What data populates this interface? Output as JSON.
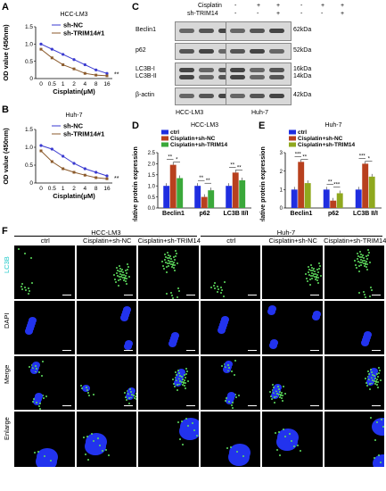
{
  "panels": {
    "A": {
      "letter": "A",
      "title": "HCC-LM3",
      "ylabel": "OD value (450nm)",
      "xlabel": "Cisplatin(μM)",
      "legend": [
        "sh-NC",
        "sh-TRIM14#1"
      ]
    },
    "B": {
      "letter": "B",
      "title": "Huh-7",
      "ylabel": "OD value (450nm)",
      "xlabel": "Cisplatin(μM)",
      "legend": [
        "sh-NC",
        "sh-TRIM14#1"
      ]
    },
    "C": {
      "letter": "C",
      "row_cisplatin": "Cisplatin",
      "row_shTRIM14": "sh-TRIM14",
      "cisplatin_signs": [
        "-",
        "+",
        "+",
        "-",
        "+",
        "+"
      ],
      "shTRIM14_signs": [
        "-",
        "-",
        "+",
        "-",
        "-",
        "+"
      ],
      "proteins": [
        "Beclin1",
        "p62",
        "LC3B-I",
        "LC3B-II",
        "β-actin"
      ],
      "sizes": [
        "62kDa",
        "52kDa",
        "16kDa",
        "14kDa",
        "42kDa"
      ],
      "cells": [
        "HCC-LM3",
        "Huh-7"
      ]
    },
    "D": {
      "letter": "D",
      "title": "HCC-LM3",
      "ylabel": "Relative protein expression",
      "legend": [
        "ctrl",
        "Cisplatin+sh-NC",
        "Cisplatin+sh-TRIM14"
      ]
    },
    "E": {
      "letter": "E",
      "title": "Huh-7",
      "ylabel": "Relative protein expression",
      "legend": [
        "ctrl",
        "Cisplatin+sh-NC",
        "Cisplatin+sh-TRIM14"
      ]
    },
    "F": {
      "letter": "F",
      "cell_groups": [
        "HCC-LM3",
        "Huh-7"
      ],
      "columns": [
        "ctrl",
        "Cisplatin+sh-NC",
        "Cisplatin+sh-TRIM14",
        "ctrl",
        "Cisplatin+sh-NC",
        "Cisplatin+sh-TRIM14"
      ],
      "rows": [
        "LC3B",
        "DAPI",
        "Merge",
        "Enlarge"
      ]
    }
  },
  "chart_data": [
    {
      "type": "line",
      "title": "HCC-LM3",
      "xlabel": "Cisplatin(μM)",
      "ylabel": "OD value (450nm)",
      "categories": [
        "0",
        "0.5",
        "1",
        "2",
        "4",
        "8",
        "16"
      ],
      "ylim": [
        0,
        1.5
      ],
      "yticks": [
        "0",
        "0.5",
        "1.0",
        "1.5"
      ],
      "series": [
        {
          "name": "sh-NC",
          "color": "#3a3ad0",
          "values": [
            1.0,
            0.85,
            0.7,
            0.55,
            0.4,
            0.25,
            0.15
          ]
        },
        {
          "name": "sh-TRIM14#1",
          "color": "#8b5a2b",
          "values": [
            0.85,
            0.6,
            0.4,
            0.28,
            0.15,
            0.1,
            0.08
          ]
        }
      ],
      "annotation": "**"
    },
    {
      "type": "line",
      "title": "Huh-7",
      "xlabel": "Cisplatin(μM)",
      "ylabel": "OD value (450nm)",
      "categories": [
        "0",
        "0.5",
        "1",
        "2",
        "4",
        "8",
        "16"
      ],
      "ylim": [
        0,
        1.5
      ],
      "yticks": [
        "0",
        "0.5",
        "1.0",
        "1.5"
      ],
      "series": [
        {
          "name": "sh-NC",
          "color": "#3a3ad0",
          "values": [
            1.05,
            0.95,
            0.75,
            0.55,
            0.4,
            0.3,
            0.2
          ]
        },
        {
          "name": "sh-TRIM14#1",
          "color": "#8b5a2b",
          "values": [
            0.9,
            0.6,
            0.4,
            0.3,
            0.22,
            0.15,
            0.12
          ]
        }
      ],
      "annotation": "**"
    },
    {
      "type": "bar",
      "title": "HCC-LM3",
      "ylabel": "Relative protein expression",
      "categories": [
        "Beclin1",
        "p62",
        "LC3B II/I"
      ],
      "ylim": [
        0,
        2.5
      ],
      "yticks": [
        "0.0",
        "0.5",
        "1.0",
        "1.5",
        "2.0",
        "2.5"
      ],
      "series": [
        {
          "name": "ctrl",
          "color": "#1f2ee0",
          "values": [
            1.0,
            1.0,
            1.0
          ]
        },
        {
          "name": "Cisplatin+sh-NC",
          "color": "#b8401e",
          "values": [
            1.95,
            0.5,
            1.6
          ]
        },
        {
          "name": "Cisplatin+sh-TRIM14",
          "color": "#3aa83a",
          "values": [
            1.35,
            0.8,
            1.25
          ]
        }
      ],
      "significance": [
        [
          "**",
          "*"
        ],
        [
          "**",
          "**"
        ],
        [
          "**",
          "**"
        ]
      ]
    },
    {
      "type": "bar",
      "title": "Huh-7",
      "ylabel": "Relative protein expression",
      "categories": [
        "Beclin1",
        "p62",
        "LC3B II/I"
      ],
      "ylim": [
        0,
        3
      ],
      "yticks": [
        "0",
        "1",
        "2",
        "3"
      ],
      "series": [
        {
          "name": "ctrl",
          "color": "#1f2ee0",
          "values": [
            1.0,
            1.0,
            1.0
          ]
        },
        {
          "name": "Cisplatin+sh-NC",
          "color": "#b8401e",
          "values": [
            2.5,
            0.4,
            2.4
          ]
        },
        {
          "name": "Cisplatin+sh-TRIM14",
          "color": "#8fa81e",
          "values": [
            1.35,
            0.8,
            1.7
          ]
        }
      ],
      "significance": [
        [
          "***",
          "**"
        ],
        [
          "**",
          "***"
        ],
        [
          "***",
          "*"
        ]
      ]
    }
  ]
}
